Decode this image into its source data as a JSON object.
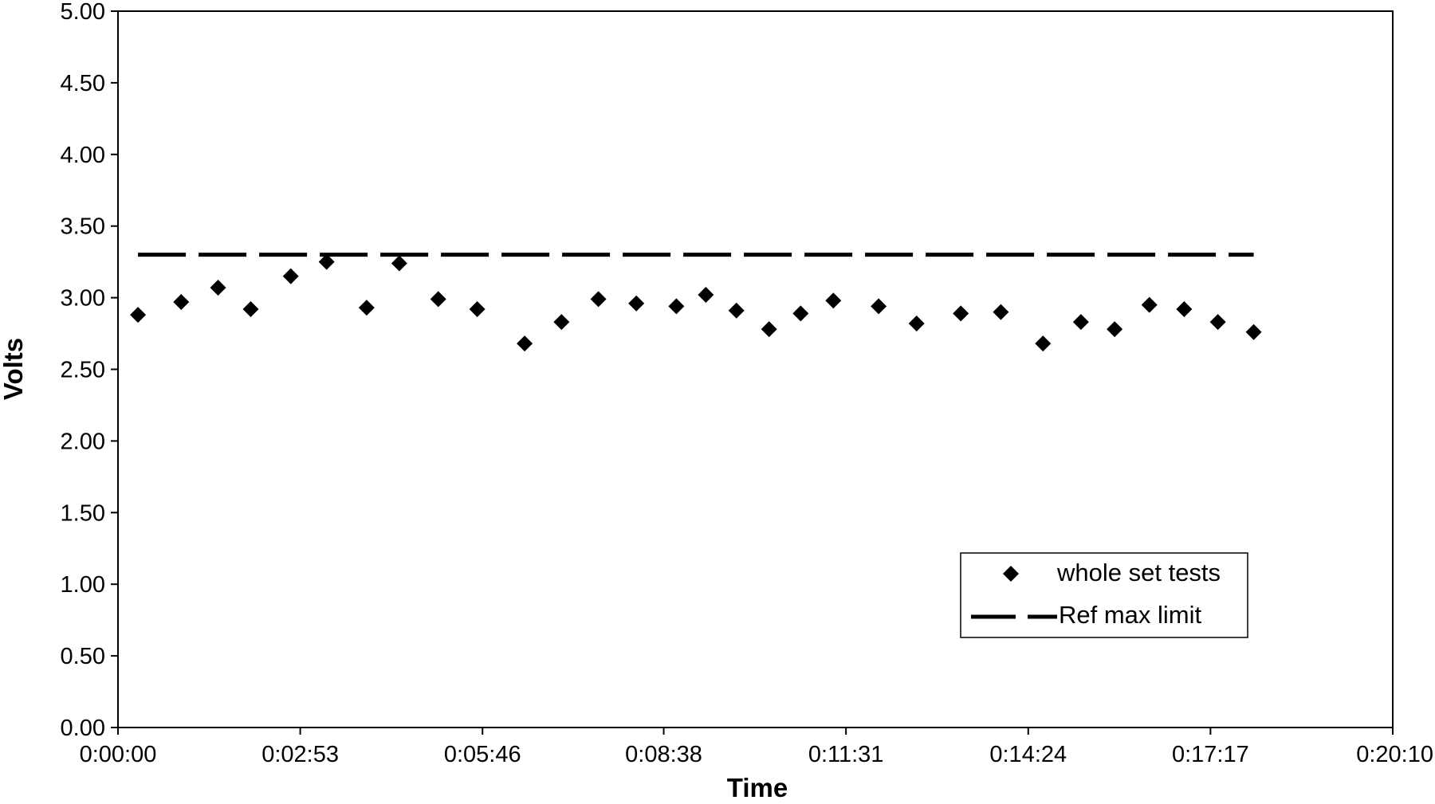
{
  "chart_data": {
    "type": "scatter",
    "xlabel": "Time",
    "ylabel": "Volts",
    "xlim": [
      "0:00:00",
      "0:20:10"
    ],
    "ylim": [
      0,
      5
    ],
    "x_ticks": [
      "0:00:00",
      "0:02:53",
      "0:05:46",
      "0:08:38",
      "0:11:31",
      "0:14:24",
      "0:17:17",
      "0:20:10"
    ],
    "y_ticks": [
      "0.00",
      "0.50",
      "1.00",
      "1.50",
      "2.00",
      "2.50",
      "3.00",
      "3.50",
      "4.00",
      "4.50",
      "5.00"
    ],
    "grid": false,
    "legend_position": "bottom-right",
    "series": [
      {
        "name": "whole set tests",
        "marker": "diamond",
        "color": "#000000",
        "x": [
          "0:00:19",
          "0:01:00",
          "0:01:35",
          "0:02:06",
          "0:02:44",
          "0:03:18",
          "0:03:56",
          "0:04:27",
          "0:05:04",
          "0:05:41",
          "0:06:26",
          "0:07:01",
          "0:07:36",
          "0:08:12",
          "0:08:50",
          "0:09:18",
          "0:09:47",
          "0:10:18",
          "0:10:48",
          "0:11:19",
          "0:12:02",
          "0:12:38",
          "0:13:20",
          "0:13:58",
          "0:14:38",
          "0:15:14",
          "0:15:46",
          "0:16:19",
          "0:16:52",
          "0:17:24",
          "0:17:58"
        ],
        "y": [
          2.88,
          2.97,
          3.07,
          2.92,
          3.15,
          3.25,
          2.93,
          3.24,
          2.99,
          2.92,
          2.68,
          2.83,
          2.99,
          2.96,
          2.94,
          3.02,
          2.91,
          2.78,
          2.89,
          2.98,
          2.94,
          2.82,
          2.89,
          2.9,
          2.68,
          2.83,
          2.78,
          2.95,
          2.92,
          2.83,
          2.76
        ]
      },
      {
        "name": "Ref max limit",
        "style": "dashed-line",
        "color": "#000000",
        "x": [
          "0:00:19",
          "0:17:58"
        ],
        "y": [
          3.3,
          3.3
        ]
      }
    ]
  }
}
